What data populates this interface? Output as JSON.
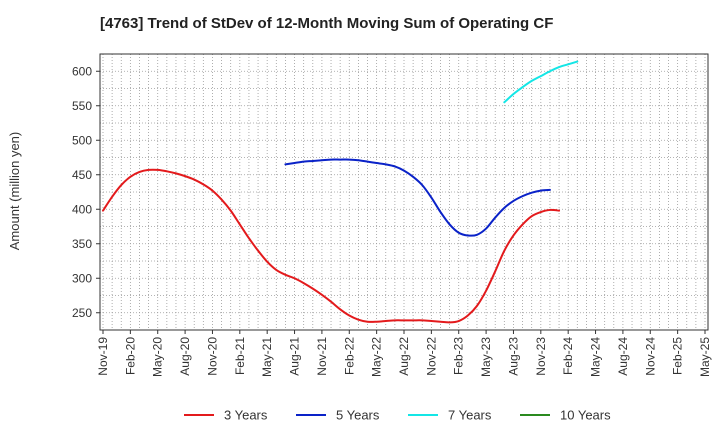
{
  "chart_data": {
    "type": "line",
    "title": "[4763]  Trend of StDev of 12-Month Moving Sum of Operating CF",
    "xlabel": "",
    "ylabel": "Amount (million yen)",
    "ylim": [
      225,
      625
    ],
    "yticks": [
      250,
      300,
      350,
      400,
      450,
      500,
      550,
      600
    ],
    "grid": true,
    "legend_position": "bottom",
    "x_tick_labels": [
      "Nov-19",
      "Feb-20",
      "May-20",
      "Aug-20",
      "Nov-20",
      "Feb-21",
      "May-21",
      "Aug-21",
      "Nov-21",
      "Feb-22",
      "May-22",
      "Aug-22",
      "Nov-22",
      "Feb-23",
      "May-23",
      "Aug-23",
      "Nov-23",
      "Feb-24",
      "May-24",
      "Aug-24",
      "Nov-24",
      "Feb-25",
      "May-25"
    ],
    "x_start": "2019-11",
    "series": [
      {
        "name": "3 Years",
        "color": "#e31a1c",
        "start": "2019-11",
        "values": [
          398,
          418,
          435,
          447,
          454,
          457,
          457,
          455,
          452,
          448,
          443,
          436,
          427,
          414,
          398,
          378,
          358,
          340,
          324,
          312,
          305,
          300,
          293,
          285,
          276,
          266,
          255,
          246,
          240,
          237,
          237,
          238,
          239,
          239,
          239,
          239,
          238,
          237,
          236,
          238,
          246,
          260,
          282,
          310,
          340,
          362,
          378,
          390,
          396,
          399,
          398
        ]
      },
      {
        "name": "5 Years",
        "color": "#0a22c8",
        "start": "2021-07",
        "values": [
          465,
          467,
          469,
          470,
          471,
          472,
          472,
          472,
          471,
          469,
          467,
          465,
          462,
          456,
          447,
          435,
          417,
          396,
          378,
          366,
          362,
          363,
          372,
          388,
          402,
          412,
          419,
          424,
          427,
          428
        ]
      },
      {
        "name": "7 Years",
        "color": "#14e6e6",
        "start": "2023-07",
        "values": [
          555,
          567,
          577,
          586,
          593,
          600,
          606,
          610,
          614
        ]
      },
      {
        "name": "10 Years",
        "color": "#2a8a1f",
        "start": "2024-02",
        "values": []
      }
    ]
  }
}
